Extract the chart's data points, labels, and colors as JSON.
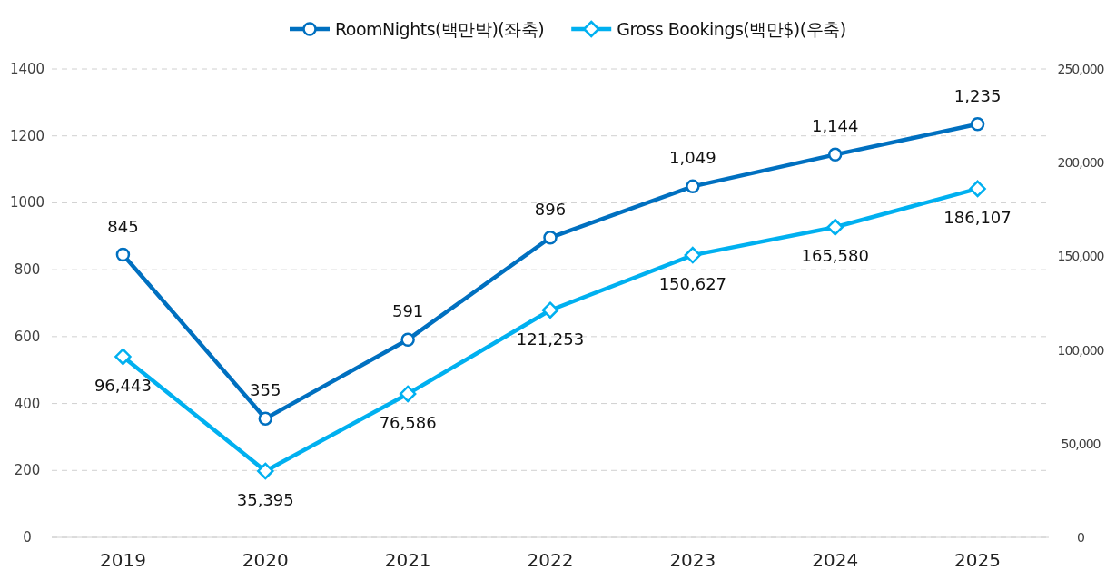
{
  "chart_data": {
    "type": "line",
    "categories": [
      "2019",
      "2020",
      "2021",
      "2022",
      "2023",
      "2024",
      "2025"
    ],
    "ylim": [
      0,
      1400
    ],
    "yticks": [
      0,
      200,
      400,
      600,
      800,
      1000,
      1200,
      1400
    ],
    "y2lim": [
      0,
      250000
    ],
    "y2ticks": [
      {
        "value": 0,
        "label": "0"
      },
      {
        "value": 50000,
        "label": "50,000"
      },
      {
        "value": 100000,
        "label": "100,000"
      },
      {
        "value": 150000,
        "label": "150,000"
      },
      {
        "value": 200000,
        "label": "200,000"
      },
      {
        "value": 250000,
        "label": "250,000"
      }
    ],
    "grid": "y",
    "legend": "top",
    "line_style": "solid",
    "series": [
      {
        "name": "RoomNights(백만박)(좌축)",
        "color": "#0070c0",
        "marker": "circle",
        "values": [
          845,
          355,
          591,
          896,
          1049,
          1144,
          1235
        ],
        "value_labels": [
          "845",
          "355",
          "591",
          "896",
          "1,049",
          "1,144",
          "1,235"
        ]
      },
      {
        "name": "Gross Bookings(백만$)(우축)",
        "color": "#00b0f0",
        "marker": "diamond",
        "axis": "y2",
        "values": [
          96443,
          35395,
          76586,
          121253,
          150627,
          165580,
          186107
        ],
        "value_labels": [
          "96,443",
          "35,395",
          "76,586",
          "121,253",
          "150,627",
          "165,580",
          "186,107"
        ]
      }
    ]
  }
}
